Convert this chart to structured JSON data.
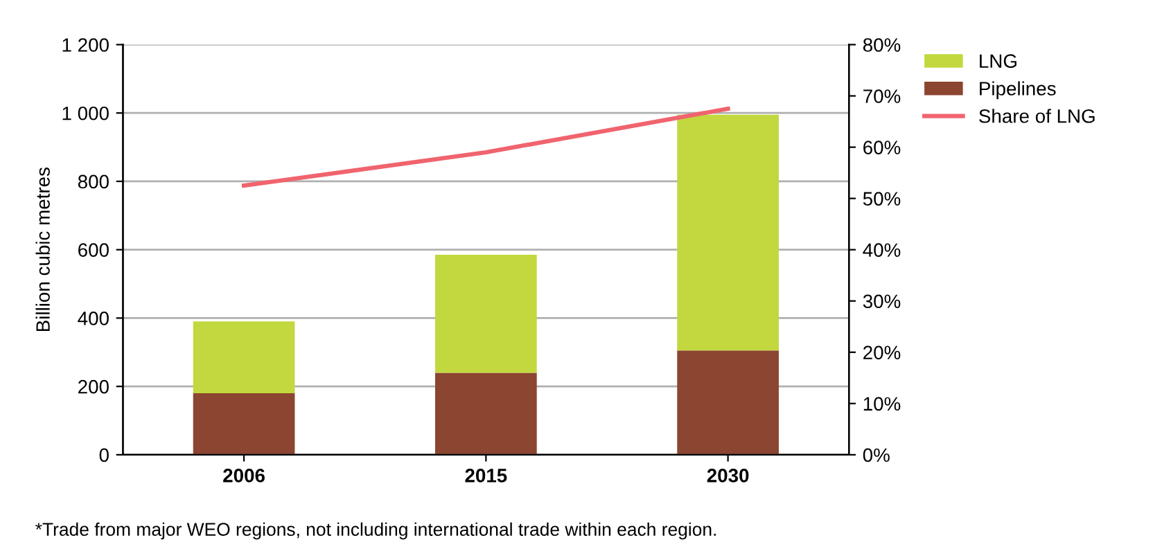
{
  "chart_data": {
    "type": "bar",
    "stacked": true,
    "categories": [
      "2006",
      "2015",
      "2030"
    ],
    "ylabel": "Billion cubic metres",
    "series": [
      {
        "name": "Pipelines",
        "color": "#8b4530",
        "values": [
          180,
          240,
          305
        ]
      },
      {
        "name": "LNG",
        "color": "#c3d83e",
        "values": [
          210,
          345,
          690
        ]
      },
      {
        "name": "Share of LNG",
        "type": "line",
        "axis": "y2",
        "color": "#f0646e",
        "values": [
          52.5,
          59,
          67.5
        ]
      }
    ],
    "ylim": [
      0,
      1200
    ],
    "yticks": [
      0,
      200,
      400,
      600,
      800,
      {
        "value": 1000,
        "label": "1 000"
      },
      {
        "value": 1200,
        "label": "1 200"
      }
    ],
    "y2lim": [
      0,
      80
    ],
    "y2ticks": [
      {
        "value": 0,
        "label": "0%"
      },
      {
        "value": 10,
        "label": "10%"
      },
      {
        "value": 20,
        "label": "20%"
      },
      {
        "value": 30,
        "label": "30%"
      },
      {
        "value": 40,
        "label": "40%"
      },
      {
        "value": 50,
        "label": "50%"
      },
      {
        "value": 60,
        "label": "60%"
      },
      {
        "value": 70,
        "label": "70%"
      },
      {
        "value": 80,
        "label": "80%"
      }
    ],
    "grid": "y",
    "legend": "top right",
    "annotations": [
      "*Trade from major WEO regions, not including international trade within each region."
    ]
  }
}
